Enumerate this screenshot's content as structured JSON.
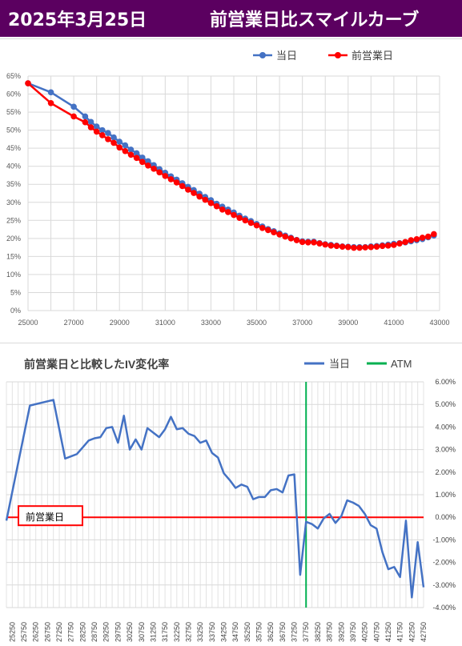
{
  "header": {
    "date": "2025年3月25日",
    "title": "前営業日比スマイルカーブ",
    "bg_color": "#5b0060"
  },
  "chart_data": [
    {
      "type": "line",
      "title": "",
      "legend_position": "top-right",
      "x_ticks": [
        "25000",
        "27000",
        "29000",
        "31000",
        "33000",
        "35000",
        "37000",
        "39000",
        "41000",
        "43000"
      ],
      "y_ticks": [
        "0%",
        "5%",
        "10%",
        "15%",
        "20%",
        "25%",
        "30%",
        "35%",
        "40%",
        "45%",
        "50%",
        "55%",
        "60%",
        "65%"
      ],
      "xlim": [
        25000,
        43000
      ],
      "ylim": [
        0,
        65
      ],
      "grid": true,
      "series": [
        {
          "name": "当日",
          "color": "#4472c4",
          "x": [
            25000,
            26000,
            27000,
            27500,
            27750,
            28000,
            28250,
            28500,
            28750,
            29000,
            29250,
            29500,
            29750,
            30000,
            30250,
            30500,
            30750,
            31000,
            31250,
            31500,
            31750,
            32000,
            32250,
            32500,
            32750,
            33000,
            33250,
            33500,
            33750,
            34000,
            34250,
            34500,
            34750,
            35000,
            35250,
            35500,
            35750,
            36000,
            36250,
            36500,
            36750,
            37000,
            37250,
            37500,
            37750,
            38000,
            38250,
            38500,
            38750,
            39000,
            39250,
            39500,
            39750,
            40000,
            40250,
            40500,
            40750,
            41000,
            41250,
            41500,
            41750,
            42000,
            42250,
            42500,
            42750
          ],
          "y": [
            63.0,
            60.5,
            56.5,
            53.8,
            52.3,
            51.0,
            50.0,
            49.2,
            48.0,
            46.8,
            45.8,
            44.6,
            43.6,
            42.4,
            41.4,
            40.3,
            39.2,
            38.2,
            37.2,
            36.3,
            35.3,
            34.3,
            33.4,
            32.4,
            31.5,
            30.6,
            29.6,
            28.8,
            28.0,
            27.2,
            26.3,
            25.5,
            24.8,
            24.0,
            23.3,
            22.6,
            22.0,
            21.4,
            20.8,
            20.2,
            19.6,
            19.2,
            19.1,
            19.1,
            18.7,
            18.4,
            18.2,
            18.0,
            17.8,
            17.7,
            17.6,
            17.6,
            17.6,
            17.8,
            17.9,
            18.1,
            18.3,
            18.5,
            18.7,
            18.9,
            19.2,
            19.5,
            19.8,
            20.3,
            20.8
          ]
        },
        {
          "name": "前営業日",
          "color": "#ff0000",
          "x": [
            25000,
            26000,
            27000,
            27500,
            27750,
            28000,
            28250,
            28500,
            28750,
            29000,
            29250,
            29500,
            29750,
            30000,
            30250,
            30500,
            30750,
            31000,
            31250,
            31500,
            31750,
            32000,
            32250,
            32500,
            32750,
            33000,
            33250,
            33500,
            33750,
            34000,
            34250,
            34500,
            34750,
            35000,
            35250,
            35500,
            35750,
            36000,
            36250,
            36500,
            36750,
            37000,
            37250,
            37500,
            37750,
            38000,
            38250,
            38500,
            38750,
            39000,
            39250,
            39500,
            39750,
            40000,
            40250,
            40500,
            40750,
            41000,
            41250,
            41500,
            41750,
            42000,
            42250,
            42500,
            42750
          ],
          "y": [
            63.0,
            57.5,
            53.8,
            52.2,
            50.8,
            49.6,
            48.6,
            47.5,
            46.5,
            45.2,
            44.2,
            43.2,
            42.3,
            41.2,
            40.2,
            39.3,
            38.3,
            37.3,
            36.4,
            35.5,
            34.5,
            33.5,
            32.6,
            31.6,
            30.7,
            29.8,
            28.9,
            28.0,
            27.3,
            26.5,
            25.7,
            25.0,
            24.3,
            23.6,
            22.9,
            22.3,
            21.7,
            21.1,
            20.5,
            20.0,
            19.5,
            19.0,
            18.9,
            18.9,
            18.6,
            18.3,
            18.0,
            17.9,
            17.7,
            17.6,
            17.4,
            17.4,
            17.5,
            17.6,
            17.7,
            17.9,
            18.0,
            18.2,
            18.6,
            19.0,
            19.5,
            19.8,
            20.2,
            20.5,
            21.2
          ]
        }
      ]
    },
    {
      "type": "line",
      "title": "前営業日と比較したIV変化率",
      "legend_position": "top-right",
      "ylim": [
        -4,
        6
      ],
      "y_ticks": [
        "6.00%",
        "5.00%",
        "4.00%",
        "3.00%",
        "2.00%",
        "1.00%",
        "0.00%",
        "-1.00%",
        "-2.00%",
        "-3.00%",
        "-4.00%"
      ],
      "x_ticks": [
        "25250",
        "25750",
        "26250",
        "26750",
        "27250",
        "27750",
        "28250",
        "28750",
        "29250",
        "29750",
        "30250",
        "30750",
        "31250",
        "31750",
        "32250",
        "32750",
        "33250",
        "33750",
        "34250",
        "34750",
        "35250",
        "35750",
        "36250",
        "36750",
        "37250",
        "37750",
        "38250",
        "38750",
        "39250",
        "39750",
        "40250",
        "40750",
        "41250",
        "41750",
        "42250",
        "42750"
      ],
      "grid": true,
      "atm_label": "ATM",
      "atm_color": "#00b050",
      "atm_x": 37750,
      "reference_label": "前営業日",
      "reference_color": "#ff0000",
      "series": [
        {
          "name": "当日",
          "color": "#4472c4",
          "x": [
            25000,
            26000,
            27000,
            27500,
            27750,
            28000,
            28250,
            28500,
            28750,
            29000,
            29250,
            29500,
            29750,
            30000,
            30250,
            30500,
            30750,
            31000,
            31250,
            31500,
            31750,
            32000,
            32250,
            32500,
            32750,
            33000,
            33250,
            33500,
            33750,
            34000,
            34250,
            34500,
            34750,
            35000,
            35250,
            35500,
            35750,
            36000,
            36250,
            36500,
            36750,
            37000,
            37250,
            37500,
            37750,
            38000,
            38250,
            38500,
            38750,
            39000,
            39250,
            39500,
            39750,
            40000,
            40250,
            40500,
            40750,
            41000,
            41250,
            41500,
            41750,
            42000,
            42250,
            42500,
            42750
          ],
          "y": [
            -0.15,
            4.95,
            5.2,
            2.6,
            2.7,
            2.8,
            3.1,
            3.4,
            3.5,
            3.55,
            3.95,
            4.0,
            3.3,
            4.5,
            3.0,
            3.45,
            3.0,
            3.95,
            3.75,
            3.55,
            3.9,
            4.45,
            3.9,
            3.95,
            3.7,
            3.6,
            3.3,
            3.4,
            2.85,
            2.65,
            1.95,
            1.65,
            1.3,
            1.45,
            1.35,
            0.8,
            0.9,
            0.9,
            1.2,
            1.25,
            1.1,
            1.85,
            1.9,
            -2.55,
            -0.2,
            -0.3,
            -0.5,
            -0.05,
            0.15,
            -0.25,
            0.05,
            0.75,
            0.65,
            0.5,
            0.15,
            -0.35,
            -0.5,
            -1.55,
            -2.3,
            -2.2,
            -2.65,
            -0.15,
            -3.55,
            -1.1,
            -3.1
          ]
        }
      ]
    }
  ]
}
